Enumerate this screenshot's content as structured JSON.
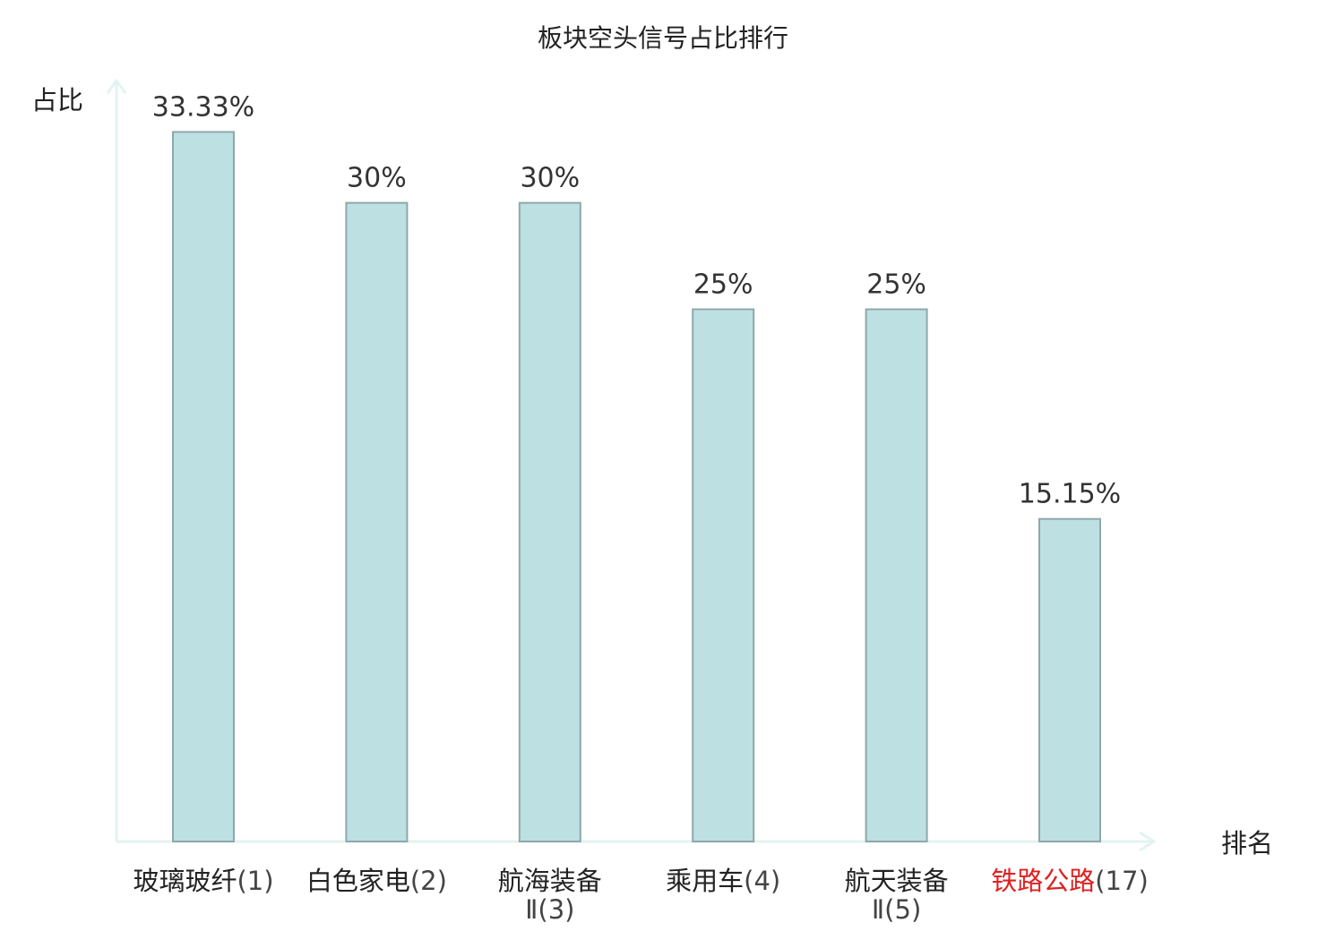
{
  "chart_data": {
    "type": "bar",
    "title": "板块空头信号占比排行",
    "xlabel": "排名",
    "ylabel": "占比",
    "ylim": [
      0,
      36.5
    ],
    "grid": false,
    "legend": "none",
    "categories": [
      {
        "name": "玻璃玻纤",
        "rank": "(1)",
        "value": 33.33,
        "label": "33.33%",
        "highlight": false
      },
      {
        "name": "白色家电",
        "rank": "(2)",
        "value": 30,
        "label": "30%",
        "highlight": false
      },
      {
        "name": "航海装备Ⅱ",
        "rank": "(3)",
        "value": 30,
        "label": "30%",
        "highlight": false
      },
      {
        "name": "乘用车",
        "rank": "(4)",
        "value": 25,
        "label": "25%",
        "highlight": false
      },
      {
        "name": "航天装备Ⅱ",
        "rank": "(5)",
        "value": 25,
        "label": "25%",
        "highlight": false
      },
      {
        "name": "铁路公路",
        "rank": "(17)",
        "value": 15.15,
        "label": "15.15%",
        "highlight": true
      }
    ],
    "colors": {
      "bar_fill": "#bde0e3",
      "bar_stroke": "#8fa8aa",
      "axis": "#e3f3f1",
      "highlight_text": "#e02020",
      "text": "#333333"
    }
  }
}
